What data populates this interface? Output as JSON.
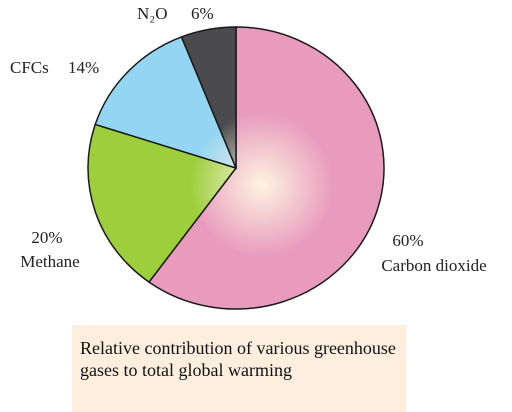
{
  "chart_data": {
    "type": "pie",
    "title": "Relative contribution of various greenhouse gases to total global warming",
    "categories": [
      "Carbon dioxide",
      "Methane",
      "CFCs",
      "N₂O"
    ],
    "values": [
      60,
      20,
      14,
      6
    ],
    "value_labels": [
      "60%",
      "20%",
      "14%",
      "6%"
    ],
    "colors": [
      "#e89bbd",
      "#9dcf3c",
      "#93d5f3",
      "#4b4b4d"
    ]
  }
}
